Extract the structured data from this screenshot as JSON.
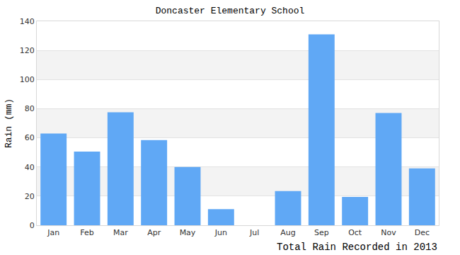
{
  "chart_data": {
    "type": "bar",
    "title": "Doncaster Elementary School",
    "x_label": "Total Rain Recorded in 2013",
    "y_label": "Rain (mm)",
    "categories": [
      "Jan",
      "Feb",
      "Mar",
      "Apr",
      "May",
      "Jun",
      "Jul",
      "Aug",
      "Sep",
      "Oct",
      "Nov",
      "Dec"
    ],
    "values": [
      63,
      50.5,
      77.5,
      58.5,
      40,
      11,
      0,
      23.5,
      131,
      19.5,
      77,
      39
    ],
    "color": "#60a8f5",
    "ylim": [
      0,
      140
    ],
    "yticks": [
      0,
      20,
      40,
      60,
      80,
      100,
      120,
      140
    ],
    "grid": true
  }
}
